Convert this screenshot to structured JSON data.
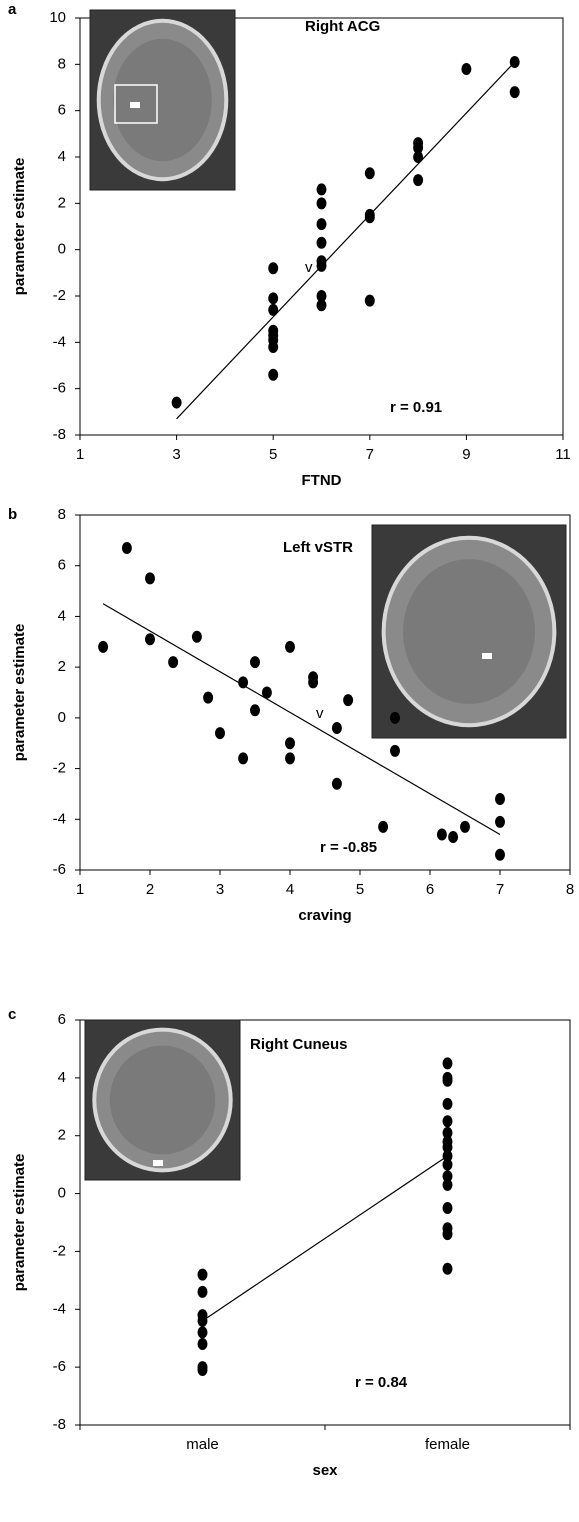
{
  "chart_data": [
    {
      "type": "scatter",
      "panel": "a",
      "x_label": "FTND",
      "y_label": "parameter estimate",
      "xlim": [
        1,
        11
      ],
      "xticks": [
        1,
        3,
        5,
        7,
        9,
        11
      ],
      "ylim": [
        -8,
        10
      ],
      "yticks": [
        -8,
        -6,
        -4,
        -2,
        0,
        2,
        4,
        6,
        8,
        10
      ],
      "x": [
        3,
        5,
        5,
        5,
        5,
        5,
        5,
        5,
        5,
        6,
        6,
        6,
        6,
        6,
        6,
        6,
        6,
        7,
        7,
        7,
        7,
        8,
        8,
        8,
        8,
        9,
        10,
        10
      ],
      "values": [
        -6.6,
        -0.8,
        -2.1,
        -2.6,
        -3.5,
        -3.7,
        -3.9,
        -4.2,
        -5.4,
        2.6,
        2.0,
        1.1,
        0.3,
        -0.5,
        -0.7,
        -2.0,
        -2.4,
        3.3,
        1.5,
        1.4,
        -2.2,
        4.6,
        4.4,
        4.0,
        3.0,
        7.8,
        8.1,
        6.8
      ],
      "color": "#000000",
      "fit": {
        "x": [
          3,
          10
        ],
        "y": [
          -7.3,
          8.1
        ]
      },
      "annotations": [
        "Right ACG",
        "r = 0.91",
        "v"
      ]
    },
    {
      "type": "scatter",
      "panel": "b",
      "x_label": "craving",
      "y_label": "parameter estimate",
      "xlim": [
        1,
        8
      ],
      "xticks": [
        1,
        2,
        3,
        4,
        5,
        6,
        7,
        8
      ],
      "ylim": [
        -6,
        8
      ],
      "yticks": [
        -6,
        -4,
        -2,
        0,
        2,
        4,
        6,
        8
      ],
      "x": [
        1.33,
        1.67,
        2,
        2,
        2.33,
        2.67,
        2.83,
        3,
        3.33,
        3.33,
        3.5,
        3.5,
        3.67,
        4,
        4,
        4,
        4.33,
        4.33,
        4.67,
        4.67,
        4.83,
        5.33,
        5.5,
        5.5,
        6.17,
        6.33,
        6.5,
        7,
        7,
        7
      ],
      "values": [
        2.8,
        6.7,
        5.5,
        3.1,
        2.2,
        3.2,
        0.8,
        -0.6,
        1.4,
        -1.6,
        2.2,
        0.3,
        1.0,
        2.8,
        -1.0,
        -1.6,
        1.6,
        1.4,
        -0.4,
        -2.6,
        0.7,
        -4.3,
        0.0,
        -1.3,
        -4.6,
        -4.7,
        -4.3,
        -3.2,
        -4.1,
        -5.4
      ],
      "color": "#000000",
      "fit": {
        "x": [
          1.33,
          7
        ],
        "y": [
          4.5,
          -4.6
        ]
      },
      "annotations": [
        "Left vSTR",
        "r = -0.85",
        "v"
      ]
    },
    {
      "type": "strip",
      "panel": "c",
      "x_label": "sex",
      "y_label": "parameter estimate",
      "categories": [
        "male",
        "female"
      ],
      "ylim": [
        -8,
        6
      ],
      "yticks": [
        -8,
        -6,
        -4,
        -2,
        0,
        2,
        4,
        6
      ],
      "values": [
        [
          -2.8,
          -3.4,
          -4.2,
          -4.4,
          -4.8,
          -5.2,
          -6.0,
          -6.1
        ],
        [
          4.5,
          4.0,
          3.9,
          3.1,
          2.5,
          2.1,
          1.8,
          1.6,
          1.3,
          1.0,
          0.6,
          0.3,
          -0.5,
          -1.2,
          -1.4,
          -2.6
        ]
      ],
      "color": "#000000",
      "fit": [
        -4.4,
        1.3
      ],
      "annotations": [
        "Right Cuneus",
        "r = 0.84"
      ]
    }
  ]
}
